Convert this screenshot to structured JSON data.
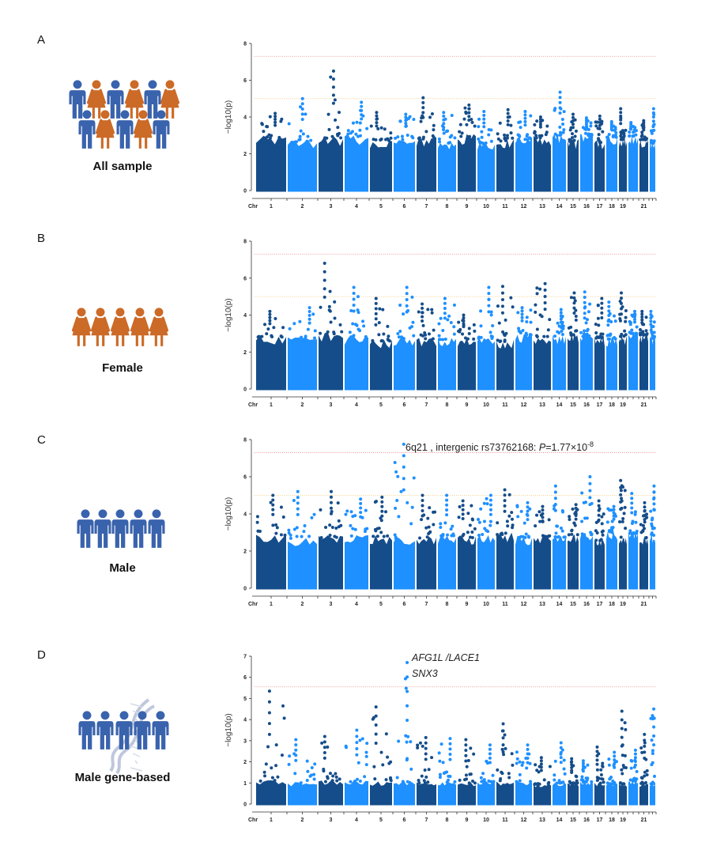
{
  "panels": [
    {
      "letter": "A",
      "caption": "All sample",
      "icon": "mixed-group"
    },
    {
      "letter": "B",
      "caption": "Female",
      "icon": "female-group"
    },
    {
      "letter": "C",
      "caption": "Male",
      "icon": "male-group"
    },
    {
      "letter": "D",
      "caption": "Male gene-based",
      "icon": "male-group-dna"
    }
  ],
  "colors": {
    "dark": "#154d8a",
    "light": "#1e90ff",
    "male_icon": "#3a63ad",
    "female_icon": "#cc6a27",
    "genomewide_line": "#f08080",
    "suggestive_line": "#f5c26b"
  },
  "chart_data": [
    {
      "type": "scatter",
      "subtype": "manhattan",
      "panel": "A",
      "ylabel": "−log10(p)",
      "xlabel": "Chr",
      "ylim": [
        0,
        8
      ],
      "yticks": [
        0,
        2,
        4,
        6,
        8
      ],
      "chromosomes": [
        "1",
        "2",
        "3",
        "4",
        "5",
        "6",
        "7",
        "8",
        "9",
        "10",
        "11",
        "12",
        "13",
        "14",
        "15",
        "16",
        "17",
        "18",
        "19",
        "20",
        "21",
        "22"
      ],
      "xtick_labels": [
        "1",
        "2",
        "3",
        "4",
        "5",
        "6",
        "7",
        "8",
        "9",
        "10",
        "11",
        "12",
        "13",
        "14",
        "15",
        "16",
        "17",
        "18",
        "19",
        "",
        "21",
        ""
      ],
      "threshold_lines": [
        7.3,
        5
      ],
      "peak_per_chr": [
        4.2,
        5.0,
        6.5,
        4.8,
        4.25,
        4.15,
        5.05,
        4.25,
        4.65,
        4.3,
        4.4,
        4.3,
        4.0,
        5.35,
        4.15,
        3.95,
        4.05,
        3.75,
        4.45,
        3.7,
        3.8,
        4.45
      ],
      "dense_upto": 3.0
    },
    {
      "type": "scatter",
      "subtype": "manhattan",
      "panel": "B",
      "ylabel": "−log10(p)",
      "xlabel": "Chr",
      "ylim": [
        0,
        8
      ],
      "yticks": [
        0,
        2,
        4,
        6,
        8
      ],
      "chromosomes": [
        "1",
        "2",
        "3",
        "4",
        "5",
        "6",
        "7",
        "8",
        "9",
        "10",
        "11",
        "12",
        "13",
        "14",
        "15",
        "16",
        "17",
        "18",
        "19",
        "20",
        "21",
        "22"
      ],
      "xtick_labels": [
        "1",
        "2",
        "3",
        "4",
        "5",
        "6",
        "7",
        "8",
        "9",
        "10",
        "11",
        "12",
        "13",
        "14",
        "15",
        "16",
        "17",
        "18",
        "19",
        "",
        "21",
        ""
      ],
      "threshold_lines": [
        7.3,
        5
      ],
      "peak_per_chr": [
        4.2,
        4.4,
        6.8,
        5.5,
        4.9,
        5.5,
        4.6,
        4.9,
        4.0,
        5.5,
        5.55,
        4.4,
        5.7,
        4.3,
        5.2,
        5.25,
        4.9,
        4.7,
        5.2,
        4.2,
        4.2,
        4.2
      ],
      "dense_upto": 3.0
    },
    {
      "type": "scatter",
      "subtype": "manhattan",
      "panel": "C",
      "ylabel": "−log10(p)",
      "xlabel": "Chr",
      "ylim": [
        0,
        8
      ],
      "yticks": [
        0,
        2,
        4,
        6,
        8
      ],
      "chromosomes": [
        "1",
        "2",
        "3",
        "4",
        "5",
        "6",
        "7",
        "8",
        "9",
        "10",
        "11",
        "12",
        "13",
        "14",
        "15",
        "16",
        "17",
        "18",
        "19",
        "20",
        "21",
        "22"
      ],
      "xtick_labels": [
        "1",
        "2",
        "3",
        "4",
        "5",
        "6",
        "7",
        "8",
        "9",
        "10",
        "11",
        "12",
        "13",
        "14",
        "15",
        "16",
        "17",
        "18",
        "19",
        "",
        "21",
        ""
      ],
      "threshold_lines": [
        7.3,
        5
      ],
      "peak_per_chr": [
        5.0,
        5.2,
        5.2,
        4.8,
        4.9,
        7.75,
        5.0,
        5.0,
        4.7,
        5.0,
        5.3,
        4.6,
        4.4,
        5.5,
        4.5,
        6.0,
        4.7,
        4.4,
        5.8,
        5.1,
        4.6,
        5.5
      ],
      "dense_upto": 3.0,
      "annotation": {
        "chr": "6",
        "text_main": "6q21 , intergenic rs73762168: ",
        "p_symbol": "P",
        "p_value": "=1.77×10",
        "p_exponent": "-8"
      }
    },
    {
      "type": "scatter",
      "subtype": "manhattan",
      "panel": "D",
      "ylabel": "−log10(p)",
      "xlabel": "Chr",
      "ylim": [
        0,
        7
      ],
      "yticks": [
        0,
        1,
        2,
        3,
        4,
        5,
        6,
        7
      ],
      "chromosomes": [
        "1",
        "2",
        "3",
        "4",
        "5",
        "6",
        "7",
        "8",
        "9",
        "10",
        "11",
        "12",
        "13",
        "14",
        "15",
        "16",
        "17",
        "18",
        "19",
        "20",
        "21",
        "22"
      ],
      "xtick_labels": [
        "1",
        "2",
        "3",
        "4",
        "5",
        "6",
        "7",
        "8",
        "9",
        "10",
        "11",
        "12",
        "13",
        "14",
        "15",
        "16",
        "17",
        "18",
        "19",
        "",
        "21",
        ""
      ],
      "threshold_lines": [
        5.55
      ],
      "peak_per_chr": [
        5.35,
        3.05,
        3.2,
        3.5,
        4.6,
        6.7,
        3.15,
        3.1,
        3.05,
        2.8,
        3.8,
        2.8,
        2.2,
        2.9,
        2.15,
        2.05,
        2.7,
        2.45,
        4.4,
        2.55,
        3.3,
        4.5
      ],
      "dense_upto": 1.1,
      "annotation": {
        "chr": "6",
        "genes": [
          "AFG1L /LACE1",
          "SNX3"
        ]
      }
    }
  ]
}
